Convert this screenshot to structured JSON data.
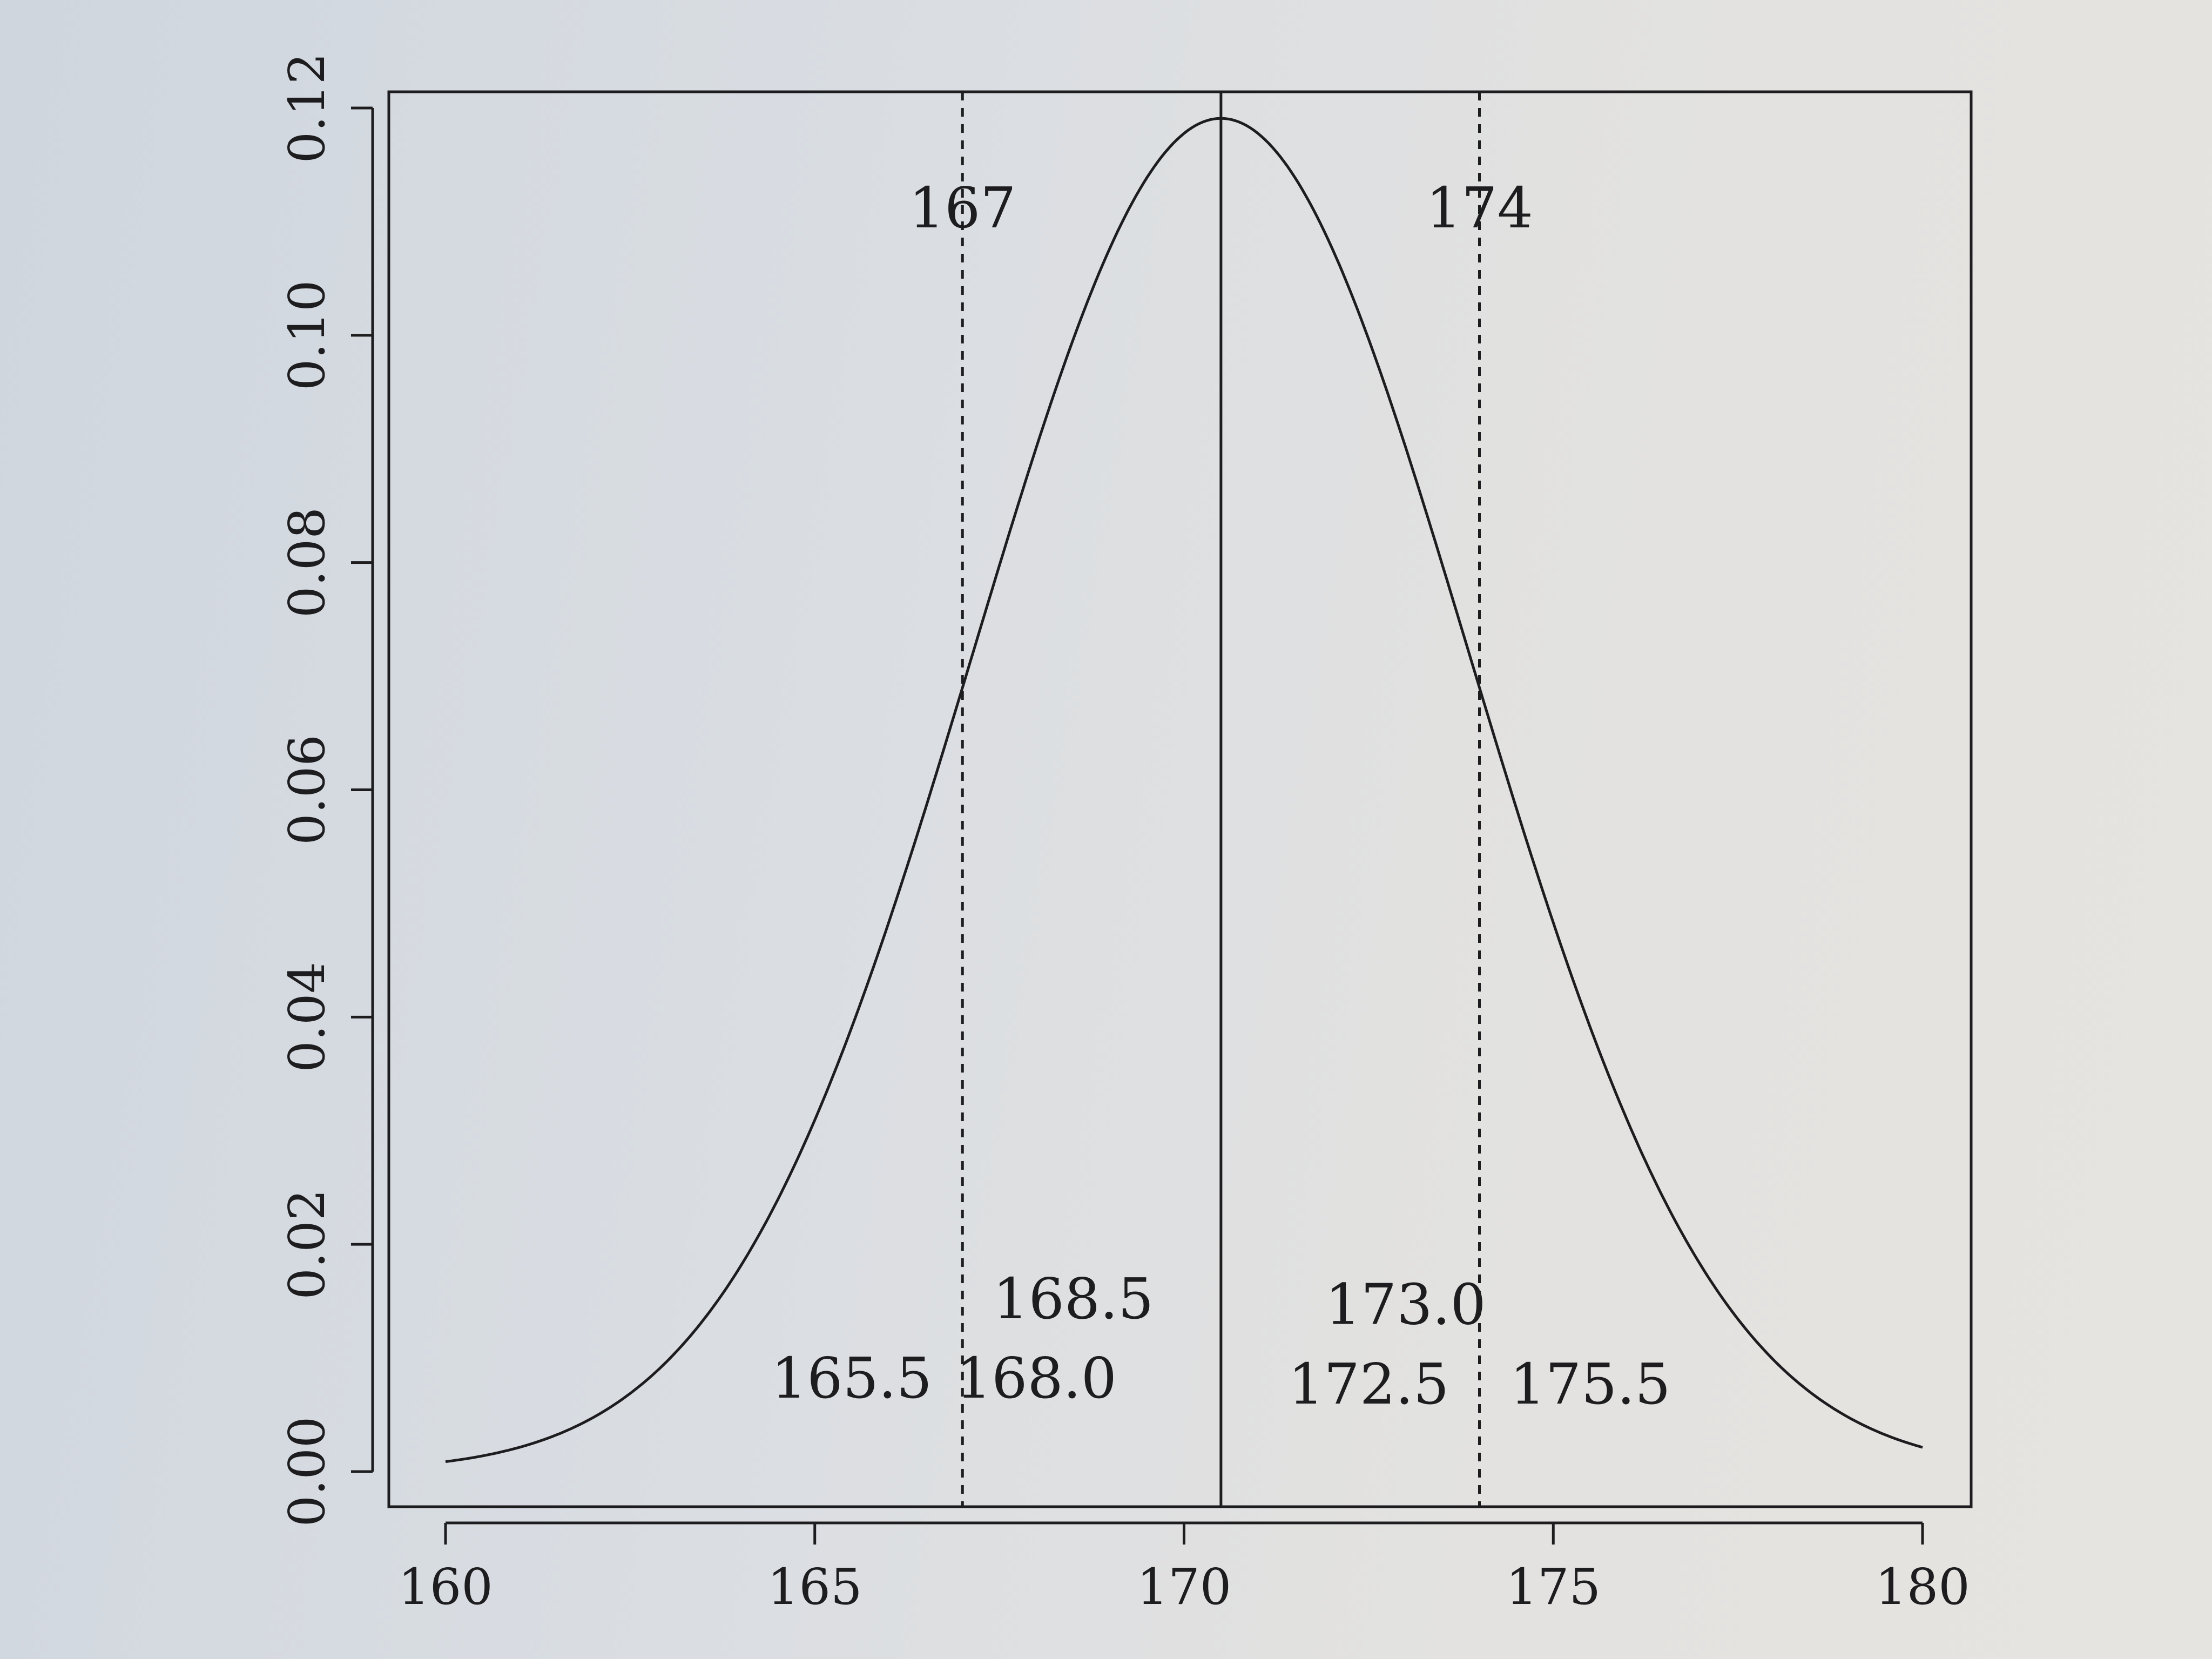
{
  "chart_data": {
    "type": "line",
    "title": "",
    "xlabel": "",
    "ylabel": "",
    "xlim": [
      160,
      180
    ],
    "ylim": [
      0,
      0.12
    ],
    "grid": false,
    "x_ticks": [
      {
        "value": 160,
        "label": "160"
      },
      {
        "value": 165,
        "label": "165"
      },
      {
        "value": 170,
        "label": "170"
      },
      {
        "value": 175,
        "label": "175"
      },
      {
        "value": 180,
        "label": "180"
      }
    ],
    "y_ticks": [
      {
        "value": 0.0,
        "label": "0.00"
      },
      {
        "value": 0.02,
        "label": "0.02"
      },
      {
        "value": 0.04,
        "label": "0.04"
      },
      {
        "value": 0.06,
        "label": "0.06"
      },
      {
        "value": 0.08,
        "label": "0.08"
      },
      {
        "value": 0.1,
        "label": "0.10"
      },
      {
        "value": 0.12,
        "label": "0.12"
      }
    ],
    "curve": {
      "distribution": "normal",
      "mean": 170.5,
      "sd": 3.35,
      "x_start": 160,
      "x_end": 180,
      "peak_value": 0.119
    },
    "vertical_lines": [
      {
        "x": 167,
        "style": "dashed",
        "label": "167"
      },
      {
        "x": 170.5,
        "style": "solid",
        "label": ""
      },
      {
        "x": 174,
        "style": "dashed",
        "label": "174"
      }
    ],
    "annotations": [
      {
        "text": "168.5",
        "x": 168.5,
        "y": 0.0135
      },
      {
        "text": "165.5",
        "x": 165.5,
        "y": 0.0065
      },
      {
        "text": "168.0",
        "x": 168.0,
        "y": 0.0065
      },
      {
        "text": "173.0",
        "x": 173.0,
        "y": 0.013
      },
      {
        "text": "172.5",
        "x": 172.5,
        "y": 0.006
      },
      {
        "text": "175.5",
        "x": 175.5,
        "y": 0.006
      }
    ]
  }
}
